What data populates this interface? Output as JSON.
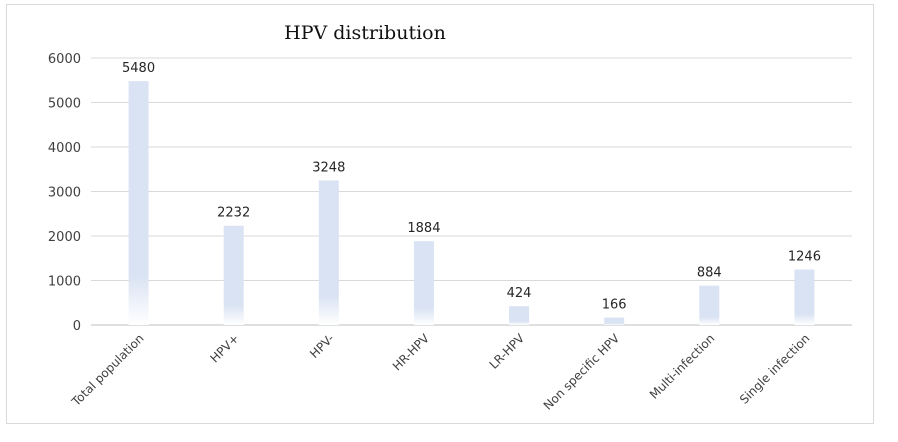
{
  "chart_data": {
    "type": "bar",
    "title": "HPV distribution",
    "xlabel": "",
    "ylabel": "",
    "categories": [
      "Total population",
      "HPV+",
      "HPV-",
      "HR-HPV",
      "LR-HPV",
      "Non specific HPV",
      "Multi-infection",
      "Single infection"
    ],
    "values": [
      5480,
      2232,
      3248,
      1884,
      424,
      166,
      884,
      1246
    ],
    "ylim": [
      0,
      6000
    ],
    "yticks": [
      0,
      1000,
      2000,
      3000,
      4000,
      5000,
      6000
    ],
    "grid": true,
    "legend": "none",
    "bar_color": "#dae3f3",
    "bar_fade_color": "#ffffff"
  }
}
